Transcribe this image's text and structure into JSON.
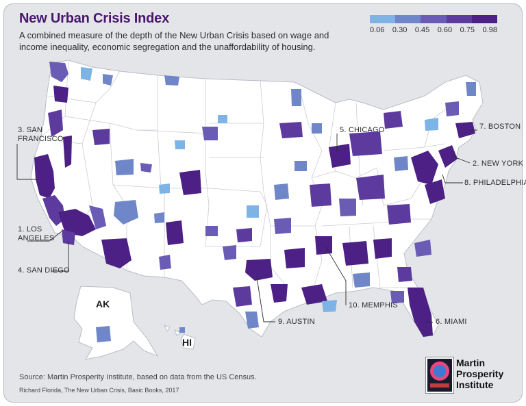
{
  "title": "New Urban Crisis Index",
  "subtitle": "A combined measure of the depth of the New Urban Crisis based on wage and income inequality, economic segregation and the unaffordability of housing.",
  "legend": {
    "labels": [
      "0.06",
      "0.30",
      "0.45",
      "0.60",
      "0.75",
      "0.98"
    ],
    "colors": [
      "#7eb3e6",
      "#6f86c8",
      "#6a5cb5",
      "#5c3a9e",
      "#4c2084"
    ]
  },
  "callouts": {
    "san_francisco": "3. SAN FRANCISCO",
    "los_angeles": "1. LOS ANGELES",
    "san_diego": "4. SAN DIEGO",
    "chicago": "5. CHICAGO",
    "boston": "7. BOSTON",
    "new_york": "2. NEW YORK",
    "philadelphia": "8. PHILADELPHIA",
    "memphis": "10. MEMPHIS",
    "austin": "9. AUSTIN",
    "miami": "6. MIAMI"
  },
  "state_tags": {
    "alaska": "AK",
    "hawaii": "HI"
  },
  "source": "Source: Martin Prosperity Institute, based on data from the US Census.",
  "credit": "Richard Florida, The New Urban Crisis, Basic Books, 2017",
  "logo": {
    "line1": "Martin",
    "line2": "Prosperity",
    "line3": "Institute"
  },
  "colors": {
    "title": "#47156b",
    "land": "#ffffff",
    "background": "#e4e5e9",
    "border": "#b9bcc6"
  }
}
